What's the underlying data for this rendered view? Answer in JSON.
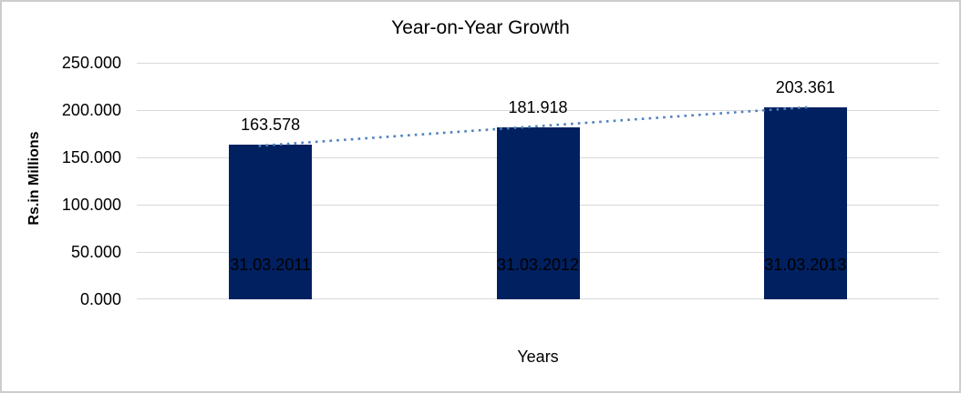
{
  "chart_data": {
    "type": "bar",
    "title": "Year-on-Year Growth",
    "categories": [
      "31.03.2011",
      "31.03.2012",
      "31.03.2013"
    ],
    "values": [
      163.578,
      181.918,
      203.361
    ],
    "data_labels": [
      "163.578",
      "181.918",
      "203.361"
    ],
    "xlabel": "Years",
    "ylabel": "Rs.in Millions",
    "ylim": [
      0,
      250
    ],
    "ytick_step": 50,
    "ytick_labels": [
      "0.000",
      "50.000",
      "100.000",
      "150.000",
      "200.000",
      "250.000"
    ],
    "grid": true,
    "legend": "none",
    "trendline": {
      "type": "linear",
      "style": "dotted"
    },
    "colors": {
      "bar": "#002060",
      "trendline": "#4F81BD",
      "gridline": "#D9D9D9",
      "text": "#000000",
      "border": "#CDCDCD"
    }
  }
}
